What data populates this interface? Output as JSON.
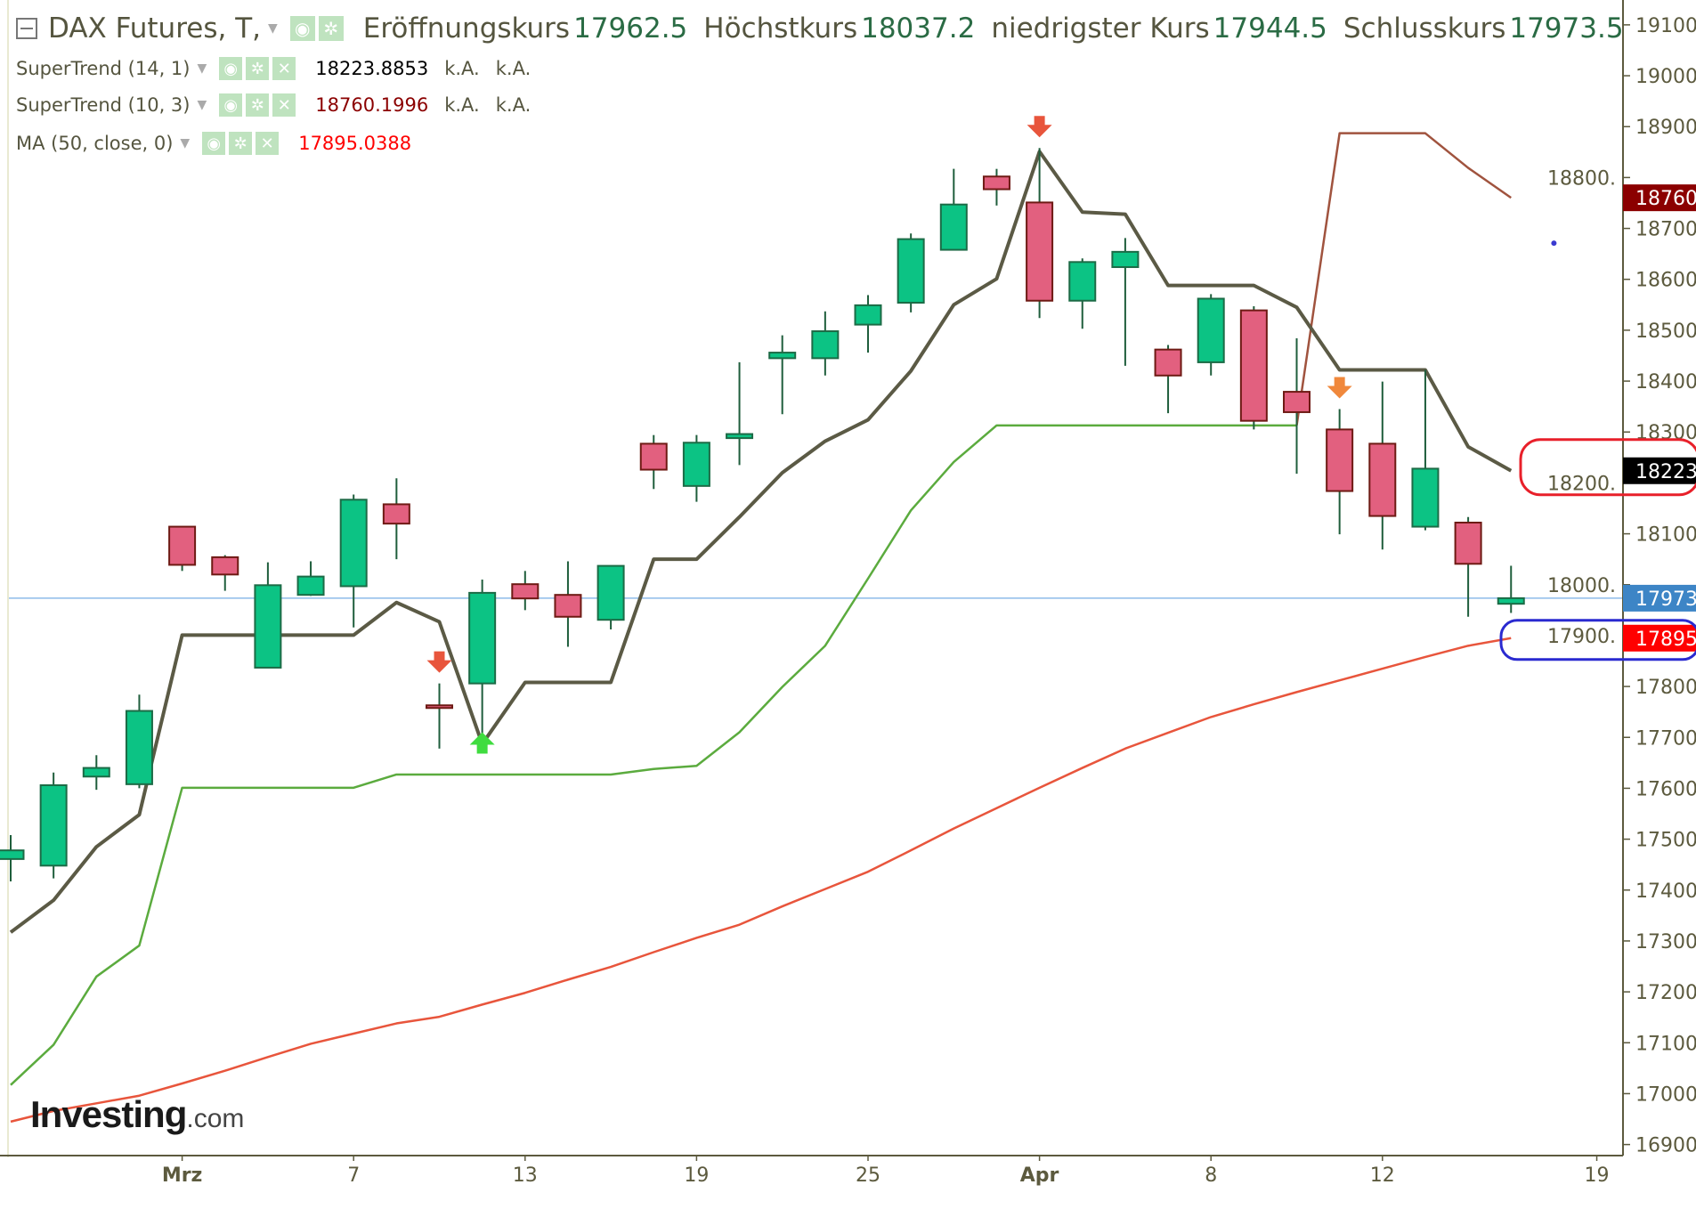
{
  "header": {
    "title": "DAX Futures, T,",
    "open_label": "Eröffnungskurs",
    "open_value": "17962.5",
    "high_label": "Höchstkurs",
    "high_value": "18037.2",
    "low_label": "niedrigster Kurs",
    "low_value": "17944.5",
    "close_label": "Schlusskurs",
    "close_value": "17973.5"
  },
  "indicators": [
    {
      "name": "SuperTrend (14, 1)",
      "value": "18223.8853",
      "extra1": "k.A.",
      "extra2": "k.A.",
      "value_color": "#000000"
    },
    {
      "name": "SuperTrend (10, 3)",
      "value": "18760.1996",
      "extra1": "k.A.",
      "extra2": "k.A.",
      "value_color": "#8b0000"
    },
    {
      "name": "MA (50, close, 0)",
      "value": "17895.0388",
      "value_color": "#ff0000"
    }
  ],
  "icons": [
    "eye-icon",
    "gear-icon",
    "close-icon",
    "chevron-down-icon",
    "collapse-icon"
  ],
  "logo": {
    "text": "Investing",
    "suffix": ".com"
  },
  "colors": {
    "up": "#0cc384",
    "down": "#e2607f",
    "supertrend_14_1": "#5b5a45",
    "supertrend_10_3_up": "#5bab3e",
    "supertrend_10_3_down": "#a0533e",
    "ma": "#e8553c",
    "last_price_line": "#8dbbe9"
  },
  "chart_data": {
    "type": "candlestick",
    "dates": [
      "Feb 26",
      "Feb 27",
      "Feb 28",
      "Feb 29",
      "Mar 1",
      "Mar 4",
      "Mar 5",
      "Mar 6",
      "Mar 7",
      "Mar 8",
      "Mar 11",
      "Mar 12",
      "Mar 13",
      "Mar 14",
      "Mar 15",
      "Mar 18",
      "Mar 19",
      "Mar 20",
      "Mar 21",
      "Mar 22",
      "Mar 25",
      "Mar 26",
      "Mar 27",
      "Mar 28",
      "Apr 2",
      "Apr 3",
      "Apr 4",
      "Apr 5",
      "Apr 8",
      "Apr 9",
      "Apr 10",
      "Apr 11",
      "Apr 12",
      "Apr 15",
      "Apr 16",
      "Apr 17"
    ],
    "open": [
      17461,
      17448,
      17623,
      17608,
      18114,
      18054,
      17837,
      17980,
      17997,
      18158,
      17763,
      17806,
      18001,
      17980,
      17931,
      18277,
      18194,
      18288,
      18445,
      18445,
      18511,
      18554,
      18658,
      18802,
      18751,
      18558,
      18624,
      18462,
      18437,
      18539,
      18379,
      18305,
      18277,
      18114,
      18122,
      17962.5
    ],
    "high": [
      17508,
      17631,
      17665,
      17784,
      18114,
      18058,
      18044,
      18046,
      18177,
      18209,
      17806,
      18010,
      18027,
      18046,
      18037,
      18294,
      18294,
      18437,
      18490,
      18537,
      18569,
      18690,
      18817,
      18817,
      18858,
      18641,
      18681,
      18471,
      18571,
      18547,
      18484,
      18345,
      18399,
      18422,
      18133,
      18037.2
    ],
    "low": [
      17417,
      17423,
      17597,
      17600,
      18027,
      17988,
      17837,
      17978,
      17916,
      18050,
      17678,
      17682,
      17950,
      17878,
      17912,
      18188,
      18163,
      18235,
      18335,
      18411,
      18456,
      18535,
      18658,
      18745,
      18524,
      18503,
      18430,
      18337,
      18411,
      18305,
      18218,
      18099,
      18069,
      18107,
      17937,
      17944.5
    ],
    "close": [
      17478,
      17606,
      17640,
      17752,
      18039,
      18020,
      17999,
      18016,
      18167,
      18120,
      17761,
      17984,
      17973,
      17937,
      18037,
      18226,
      18279,
      18296,
      18456,
      18498,
      18549,
      18679,
      18747,
      18777,
      18558,
      18634,
      18654,
      18411,
      18562,
      18322,
      18339,
      18184,
      18135,
      18228,
      18041,
      17973.5
    ],
    "series": [
      {
        "name": "SuperTrend (14, 1)",
        "values": [
          17317,
          17380,
          17485,
          17548,
          17901,
          17901,
          17901,
          17901,
          17901,
          17965,
          17927,
          17687,
          17808,
          17808,
          17808,
          18050,
          18050,
          18133,
          18220,
          18282,
          18324,
          18420,
          18550,
          18601,
          18851,
          18732,
          18728,
          18588,
          18588,
          18588,
          18545,
          18422,
          18422,
          18422,
          18271,
          18223.9
        ]
      },
      {
        "name": "SuperTrend (10, 3)",
        "up_values": [
          17017,
          17096,
          17230,
          17291,
          17601,
          17601,
          17601,
          17601,
          17601,
          17627,
          17627,
          17627,
          17627,
          17627,
          17627,
          17638,
          17644,
          17710,
          17799,
          17880,
          18012,
          18146,
          18241,
          18313,
          18313,
          18313,
          18313,
          18313,
          18313,
          18313,
          18313,
          null,
          null,
          null,
          null,
          null
        ],
        "down_values": [
          null,
          null,
          null,
          null,
          null,
          null,
          null,
          null,
          null,
          null,
          null,
          null,
          null,
          null,
          null,
          null,
          null,
          null,
          null,
          null,
          null,
          null,
          null,
          null,
          null,
          null,
          null,
          null,
          null,
          null,
          18313,
          18887,
          18887,
          18887,
          18819,
          18760.2
        ]
      },
      {
        "name": "MA (50, close, 0)",
        "values": [
          16945,
          16966,
          16981,
          16996,
          17020,
          17045,
          17072,
          17098,
          17118,
          17138,
          17151,
          17175,
          17198,
          17224,
          17249,
          17278,
          17306,
          17332,
          17368,
          17402,
          17436,
          17478,
          17521,
          17561,
          17601,
          17640,
          17678,
          17709,
          17740,
          17765,
          17789,
          17812,
          17835,
          17858,
          17880,
          17895
        ]
      }
    ],
    "signals": [
      {
        "date": "Mar 11",
        "type": "sell",
        "color": "#e8553c"
      },
      {
        "date": "Mar 12",
        "type": "buy",
        "color": "#3fdc3f"
      },
      {
        "date": "Apr 2",
        "type": "sell",
        "color": "#e8553c"
      },
      {
        "date": "Apr 11",
        "type": "sell",
        "color": "#f0883c"
      }
    ],
    "extra_point": {
      "date": "Apr 18",
      "value": 18671,
      "color": "#3b3bd0"
    },
    "last_price": 17973.5,
    "ylim": [
      16900,
      19100
    ],
    "y_ticks": [
      "16900.",
      "17000.",
      "17100.",
      "17200.",
      "17300.",
      "17400.",
      "17500.",
      "17600.",
      "17700.",
      "17800.",
      "17900.",
      "18000.",
      "18100.",
      "18200.",
      "18300.",
      "18400.",
      "18500.",
      "18600.",
      "18700.",
      "18800.",
      "18900.",
      "19000.",
      "19100."
    ],
    "x_ticks": [
      {
        "label": "Mrz",
        "date": "Mar 1",
        "bold": true
      },
      {
        "label": "7",
        "date": "Mar 7"
      },
      {
        "label": "13",
        "date": "Mar 13"
      },
      {
        "label": "19",
        "date": "Mar 19"
      },
      {
        "label": "25",
        "date": "Mar 25"
      },
      {
        "label": "Apr",
        "date": "Apr 2",
        "bold": true
      },
      {
        "label": "8",
        "date": "Apr 8"
      },
      {
        "label": "12",
        "date": "Apr 12"
      },
      {
        "label": "19",
        "date": "Apr 19"
      }
    ],
    "price_tags": [
      {
        "label": "18760.",
        "value": 18760.2,
        "bg": "#8b0000"
      },
      {
        "label": "18223.",
        "value": 18223.9,
        "bg": "#000000"
      },
      {
        "label": "17973.",
        "value": 17973.5,
        "bg": "#3d85c6"
      },
      {
        "label": "17895.",
        "value": 17895.0,
        "bg": "#ff0000"
      }
    ],
    "annotations": [
      {
        "type": "ellipse",
        "color": "#e8202a",
        "around": 18223.9
      },
      {
        "type": "ellipse",
        "color": "#2a2ad0",
        "around": 17895.0
      }
    ],
    "grid": false
  }
}
